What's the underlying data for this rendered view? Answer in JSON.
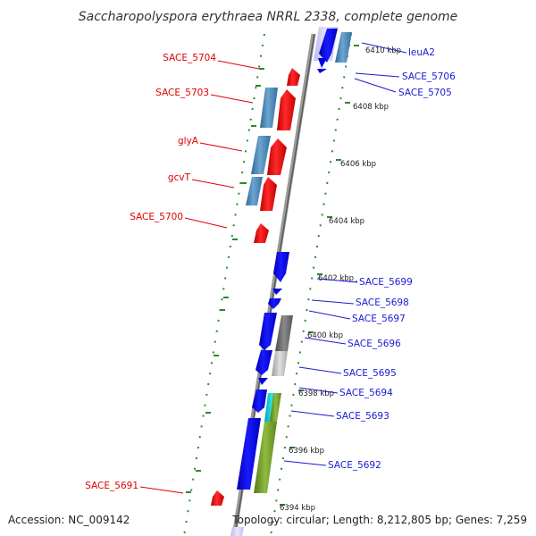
{
  "title": "Saccharopolyspora erythraea NRRL 2338, complete genome",
  "footer": {
    "accession": "Accession: NC_009142",
    "topology": "Topology: circular; Length: 8,212,805 bp; Genes: 7,259"
  },
  "scale_labels": [
    "6410 kbp",
    "6408 kbp",
    "6406 kbp",
    "6404 kbp",
    "6402 kbp",
    "6400 kbp",
    "6398 kbp",
    "6396 kbp",
    "6394 kbp"
  ],
  "genes_left": [
    "SACE_5704",
    "SACE_5703",
    "glyA",
    "gcvT",
    "SACE_5700",
    "SACE_5691"
  ],
  "genes_right": [
    "leuA2",
    "SACE_5706",
    "SACE_5705",
    "SACE_5699",
    "SACE_5698",
    "SACE_5697",
    "SACE_5696",
    "SACE_5695",
    "SACE_5694",
    "SACE_5693",
    "SACE_5692"
  ],
  "colors": {
    "forward_cds": "#ff0000",
    "reverse_cds": "#0000ff",
    "steel_blue": "#4682b4",
    "gray_dark": "#707070",
    "gray_light": "#c4c4c4",
    "cyan": "#00c8d8",
    "olive": "#6f9a2a",
    "backbone": "#808080",
    "tick_green": "#2a8a2a"
  }
}
